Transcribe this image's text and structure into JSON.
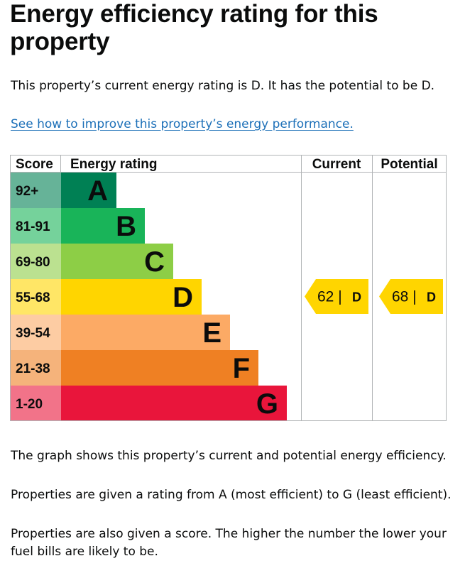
{
  "heading": "Energy efficiency rating for this property",
  "intro": "This property’s current energy rating is D. It has the potential to be D.",
  "improve_link": "See how to improve this property’s energy performance.",
  "chart_data": {
    "type": "bar",
    "headers": {
      "score": "Score",
      "rating": "Energy rating",
      "current": "Current",
      "potential": "Potential"
    },
    "bands": [
      {
        "score": "92+",
        "letter": "A",
        "bar_color": "#008054",
        "score_color": "#66b398",
        "text_color": "#0b0c0c"
      },
      {
        "score": "81-91",
        "letter": "B",
        "bar_color": "#19b459",
        "score_color": "#75d29b",
        "text_color": "#0b0c0c"
      },
      {
        "score": "69-80",
        "letter": "C",
        "bar_color": "#8dce46",
        "score_color": "#bbe190",
        "text_color": "#0b0c0c"
      },
      {
        "score": "55-68",
        "letter": "D",
        "bar_color": "#ffd500",
        "score_color": "#ffe666",
        "text_color": "#0b0c0c"
      },
      {
        "score": "39-54",
        "letter": "E",
        "bar_color": "#fcaa65",
        "score_color": "#fdcca3",
        "text_color": "#0b0c0c"
      },
      {
        "score": "21-38",
        "letter": "F",
        "bar_color": "#ef8023",
        "score_color": "#f5b37b",
        "text_color": "#0b0c0c"
      },
      {
        "score": "1-20",
        "letter": "G",
        "bar_color": "#e9153b",
        "score_color": "#f27389",
        "text_color": "#0b0c0c"
      }
    ],
    "current": {
      "score": 62,
      "band": "D",
      "label": "62 |",
      "letter": "D",
      "color": "#ffd500"
    },
    "potential": {
      "score": 68,
      "band": "D",
      "label": "68 |",
      "letter": "D",
      "color": "#ffd500"
    },
    "grid_color": "#b1b4b6"
  },
  "desc_1": "The graph shows this property’s current and potential energy efficiency.",
  "desc_2": "Properties are given a rating from A (most efficient) to G (least efficient).",
  "desc_3": "Properties are also given a score. The higher the number the lower your fuel bills are likely to be."
}
